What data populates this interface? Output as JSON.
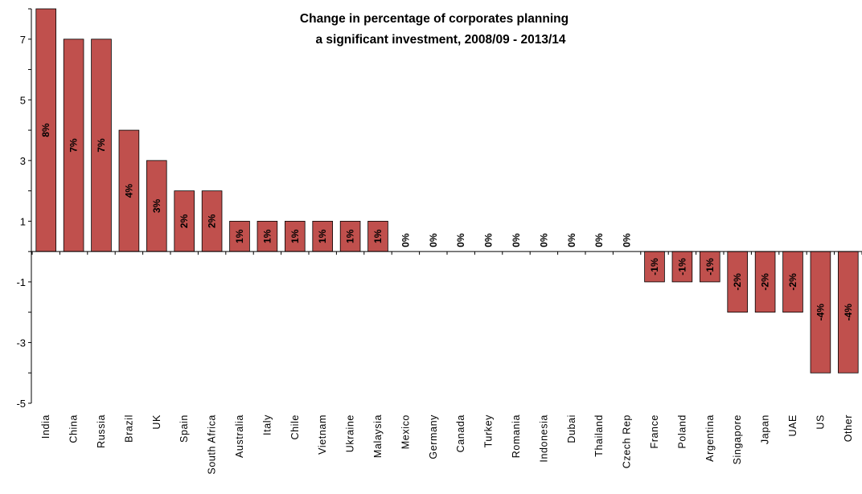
{
  "chart_data": {
    "type": "bar",
    "title_lines": [
      "Change in percentage of corporates planning",
      "a significant investment, 2008/09 - 2013/14"
    ],
    "xlabel": "",
    "ylabel": "",
    "ylim": [
      -5,
      8
    ],
    "yticks": [
      7,
      5,
      3,
      1,
      -1,
      -3,
      -5
    ],
    "categories": [
      "India",
      "China",
      "Russia",
      "Brazil",
      "UK",
      "Spain",
      "South Africa",
      "Australia",
      "Italy",
      "Chile",
      "Vietnam",
      "Ukraine",
      "Malaysia",
      "Mexico",
      "Germany",
      "Canada",
      "Turkey",
      "Romania",
      "Indonesia",
      "Dubai",
      "Thailand",
      "Czech Rep",
      "France",
      "Poland",
      "Argentina",
      "Singapore",
      "Japan",
      "UAE",
      "US",
      "Other"
    ],
    "values": [
      8,
      7,
      7,
      4,
      3,
      2,
      2,
      1,
      1,
      1,
      1,
      1,
      1,
      0,
      0,
      0,
      0,
      0,
      0,
      0,
      0,
      0,
      -1,
      -1,
      -1,
      -2,
      -2,
      -2,
      -4,
      -4
    ],
    "data_labels": [
      "8%",
      "7%",
      "7%",
      "4%",
      "3%",
      "2%",
      "2%",
      "1%",
      "1%",
      "1%",
      "1%",
      "1%",
      "1%",
      "0%",
      "0%",
      "0%",
      "0%",
      "0%",
      "0%",
      "0%",
      "0%",
      "0%",
      "-1%",
      "-1%",
      "-1%",
      "-2%",
      "-2%",
      "-2%",
      "-4%",
      "-4%"
    ],
    "bar_color": "#c0504d",
    "grid": false,
    "legend": "none"
  }
}
